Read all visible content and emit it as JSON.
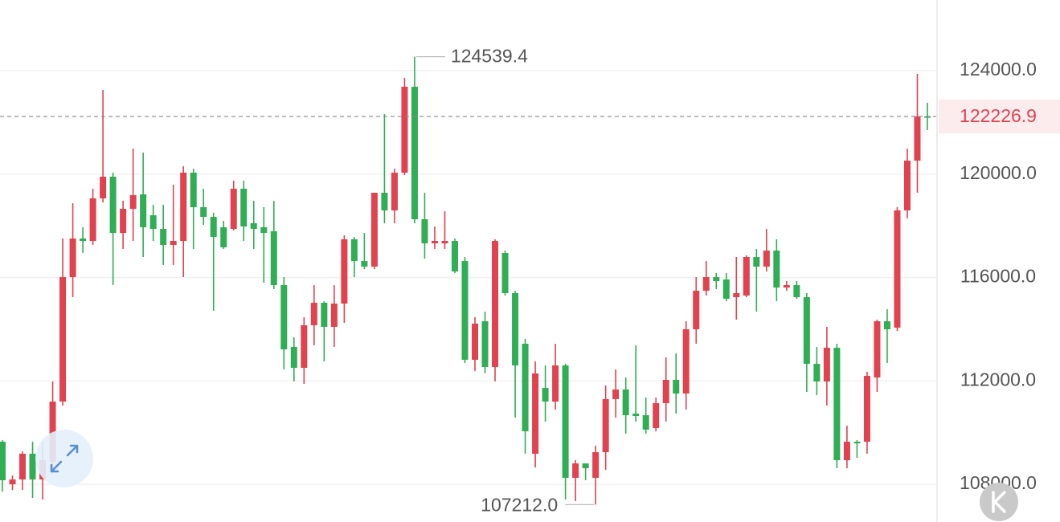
{
  "chart_data": {
    "type": "candlestick",
    "ylim": [
      106540,
      126734
    ],
    "yticks": [
      {
        "value": 108000,
        "label": "108000.0"
      },
      {
        "value": 112000,
        "label": "112000.0"
      },
      {
        "value": 116000,
        "label": "116000.0"
      },
      {
        "value": 120000,
        "label": "120000.0"
      },
      {
        "value": 124000,
        "label": "124000.0"
      }
    ],
    "grid": true,
    "up_color": "#e0434f",
    "down_color": "#2fae55",
    "last_price": 122226.9,
    "high_label": 124539.4,
    "low_label": {
      "value": 107212,
      "label": "107212.0"
    },
    "candles": [
      [
        109646,
        109707,
        107713,
        108154
      ],
      [
        107999,
        108341,
        107776,
        108185
      ],
      [
        108185,
        109273,
        107776,
        109180
      ],
      [
        109180,
        109646,
        107471,
        108185
      ],
      [
        108185,
        109646,
        107408,
        108931
      ],
      [
        108869,
        111976,
        108403,
        111199
      ],
      [
        111199,
        117507,
        111044,
        116015
      ],
      [
        116015,
        118873,
        115238,
        117507
      ],
      [
        117507,
        117942,
        116947,
        117413
      ],
      [
        117413,
        119433,
        117258,
        119060
      ],
      [
        119060,
        123254,
        118904,
        119899
      ],
      [
        119899,
        120054,
        115704,
        117724
      ],
      [
        117724,
        118967,
        117103,
        118656
      ],
      [
        118656,
        120986,
        117413,
        119184
      ],
      [
        119215,
        120831,
        116792,
        117942
      ],
      [
        118407,
        118811,
        117413,
        117880
      ],
      [
        117880,
        118811,
        116481,
        117258
      ],
      [
        117258,
        119588,
        116481,
        117413
      ],
      [
        117413,
        120302,
        116015,
        120054
      ],
      [
        120054,
        120209,
        117103,
        118718
      ],
      [
        118718,
        119433,
        118034,
        118345
      ],
      [
        118345,
        118501,
        114710,
        117569
      ],
      [
        117942,
        118190,
        117103,
        117165
      ],
      [
        117880,
        119743,
        117817,
        119433
      ],
      [
        119433,
        119743,
        117413,
        117973
      ],
      [
        118097,
        118967,
        117103,
        117880
      ],
      [
        117942,
        118718,
        115797,
        117724
      ],
      [
        117786,
        118967,
        115549,
        115704
      ],
      [
        115704,
        116015,
        112442,
        113219
      ],
      [
        113312,
        113685,
        111976,
        112504
      ],
      [
        112504,
        114462,
        111883,
        114151
      ],
      [
        114151,
        115704,
        113374,
        115021
      ],
      [
        115021,
        115083,
        112753,
        114089
      ],
      [
        114089,
        115704,
        113312,
        114990
      ],
      [
        114990,
        117631,
        114244,
        117476
      ],
      [
        117476,
        117569,
        116015,
        116636
      ],
      [
        116636,
        117724,
        116325,
        116419
      ],
      [
        116419,
        119277,
        116325,
        119277
      ],
      [
        119277,
        122322,
        118097,
        118594
      ],
      [
        118594,
        120209,
        118097,
        120054
      ],
      [
        120054,
        123720,
        119961,
        123378
      ],
      [
        123378,
        124539.4,
        118097,
        118252
      ],
      [
        118252,
        119277,
        116729,
        117320
      ],
      [
        117320,
        117973,
        117103,
        117413
      ],
      [
        117320,
        118563,
        117103,
        117413
      ],
      [
        117413,
        117507,
        116170,
        116232
      ],
      [
        116636,
        116792,
        112690,
        112815
      ],
      [
        112815,
        114462,
        112380,
        114213
      ],
      [
        114306,
        114679,
        112287,
        112535
      ],
      [
        112535,
        117476,
        111976,
        117413
      ],
      [
        116947,
        117040,
        115300,
        115394
      ],
      [
        115394,
        115487,
        110578,
        112597
      ],
      [
        113437,
        113623,
        109180,
        110049
      ],
      [
        109180,
        112753,
        108651,
        112287
      ],
      [
        111727,
        112597,
        110422,
        111199
      ],
      [
        111199,
        113437,
        110888,
        112597
      ],
      [
        112597,
        112659,
        107408,
        108247
      ],
      [
        108247,
        108931,
        107350,
        108807
      ],
      [
        108807,
        108807,
        108154,
        108620
      ],
      [
        108247,
        109490,
        107212,
        109242
      ],
      [
        109242,
        111820,
        108558,
        111293
      ],
      [
        111293,
        112442,
        110578,
        111665
      ],
      [
        111665,
        112131,
        109956,
        110671
      ],
      [
        110733,
        113374,
        110422,
        110640
      ],
      [
        110671,
        111355,
        109956,
        110111
      ],
      [
        110174,
        111355,
        110049,
        111137
      ],
      [
        111137,
        112908,
        110422,
        112038
      ],
      [
        112038,
        113063,
        110733,
        111510
      ],
      [
        111510,
        114306,
        110888,
        113996
      ],
      [
        113996,
        116015,
        113437,
        115487
      ],
      [
        115487,
        116636,
        115300,
        116015
      ],
      [
        116015,
        116170,
        115549,
        115860
      ],
      [
        115922,
        116170,
        115083,
        115176
      ],
      [
        115238,
        116792,
        114368,
        115394
      ],
      [
        115300,
        116854,
        115238,
        116792
      ],
      [
        116792,
        117103,
        114679,
        116419
      ],
      [
        116419,
        117880,
        116232,
        117040
      ],
      [
        117040,
        117476,
        115083,
        115611
      ],
      [
        115611,
        115860,
        115487,
        115704
      ],
      [
        115704,
        115860,
        115176,
        115238
      ],
      [
        115238,
        115394,
        111572,
        112659
      ],
      [
        112659,
        113312,
        111448,
        111976
      ],
      [
        111976,
        114089,
        111044,
        113281
      ],
      [
        113281,
        113437,
        108620,
        108931
      ],
      [
        108931,
        110267,
        108620,
        109646
      ],
      [
        109646,
        109707,
        109024,
        109583
      ],
      [
        109646,
        112349,
        109180,
        112193
      ],
      [
        112131,
        114368,
        111572,
        114306
      ],
      [
        114306,
        114772,
        112690,
        113996
      ],
      [
        114058,
        118718,
        113934,
        118594
      ],
      [
        118594,
        120986,
        118283,
        120520
      ],
      [
        120520,
        123876,
        119277,
        122229
      ],
      [
        122229,
        122757,
        121701,
        122226.9
      ]
    ]
  }
}
